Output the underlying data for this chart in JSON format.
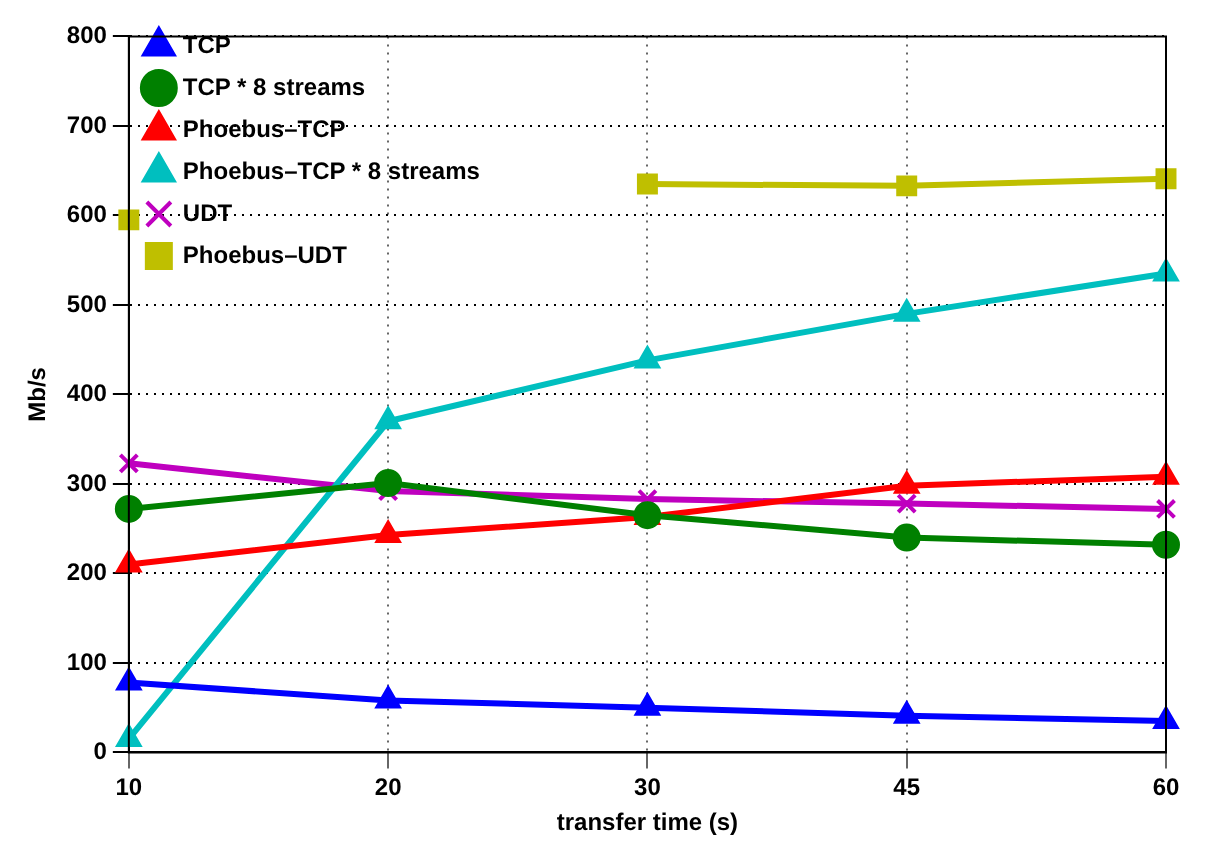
{
  "chart_data": {
    "type": "line",
    "xlabel": "transfer time (s)",
    "ylabel": "Mb/s",
    "categories": [
      "10",
      "20",
      "30",
      "45",
      "60"
    ],
    "ylim": [
      0,
      800
    ],
    "yticks": [
      0,
      100,
      200,
      300,
      400,
      500,
      600,
      700,
      800
    ],
    "grid": true,
    "legend": "top left",
    "line_style": "solid",
    "series": [
      {
        "name": "TCP",
        "color": "#0000ff",
        "marker": "triangle",
        "values": [
          78,
          58,
          50,
          41,
          35
        ]
      },
      {
        "name": "TCP * 8 streams",
        "color": "#008000",
        "marker": "circle",
        "values": [
          272,
          301,
          265,
          240,
          232
        ]
      },
      {
        "name": "Phoebus–TCP",
        "color": "#ff0000",
        "marker": "triangle",
        "values": [
          210,
          243,
          263,
          298,
          308
        ]
      },
      {
        "name": "Phoebus–TCP * 8 streams",
        "color": "#00bfbf",
        "marker": "triangle",
        "values": [
          15,
          370,
          438,
          490,
          535
        ]
      },
      {
        "name": "UDT",
        "color": "#bf00bf",
        "marker": "cross",
        "values": [
          323,
          292,
          283,
          278,
          272
        ]
      },
      {
        "name": "Phoebus–UDT",
        "color": "#bfbf00",
        "marker": "square",
        "values": [
          595,
          null,
          635,
          633,
          641
        ]
      }
    ]
  }
}
